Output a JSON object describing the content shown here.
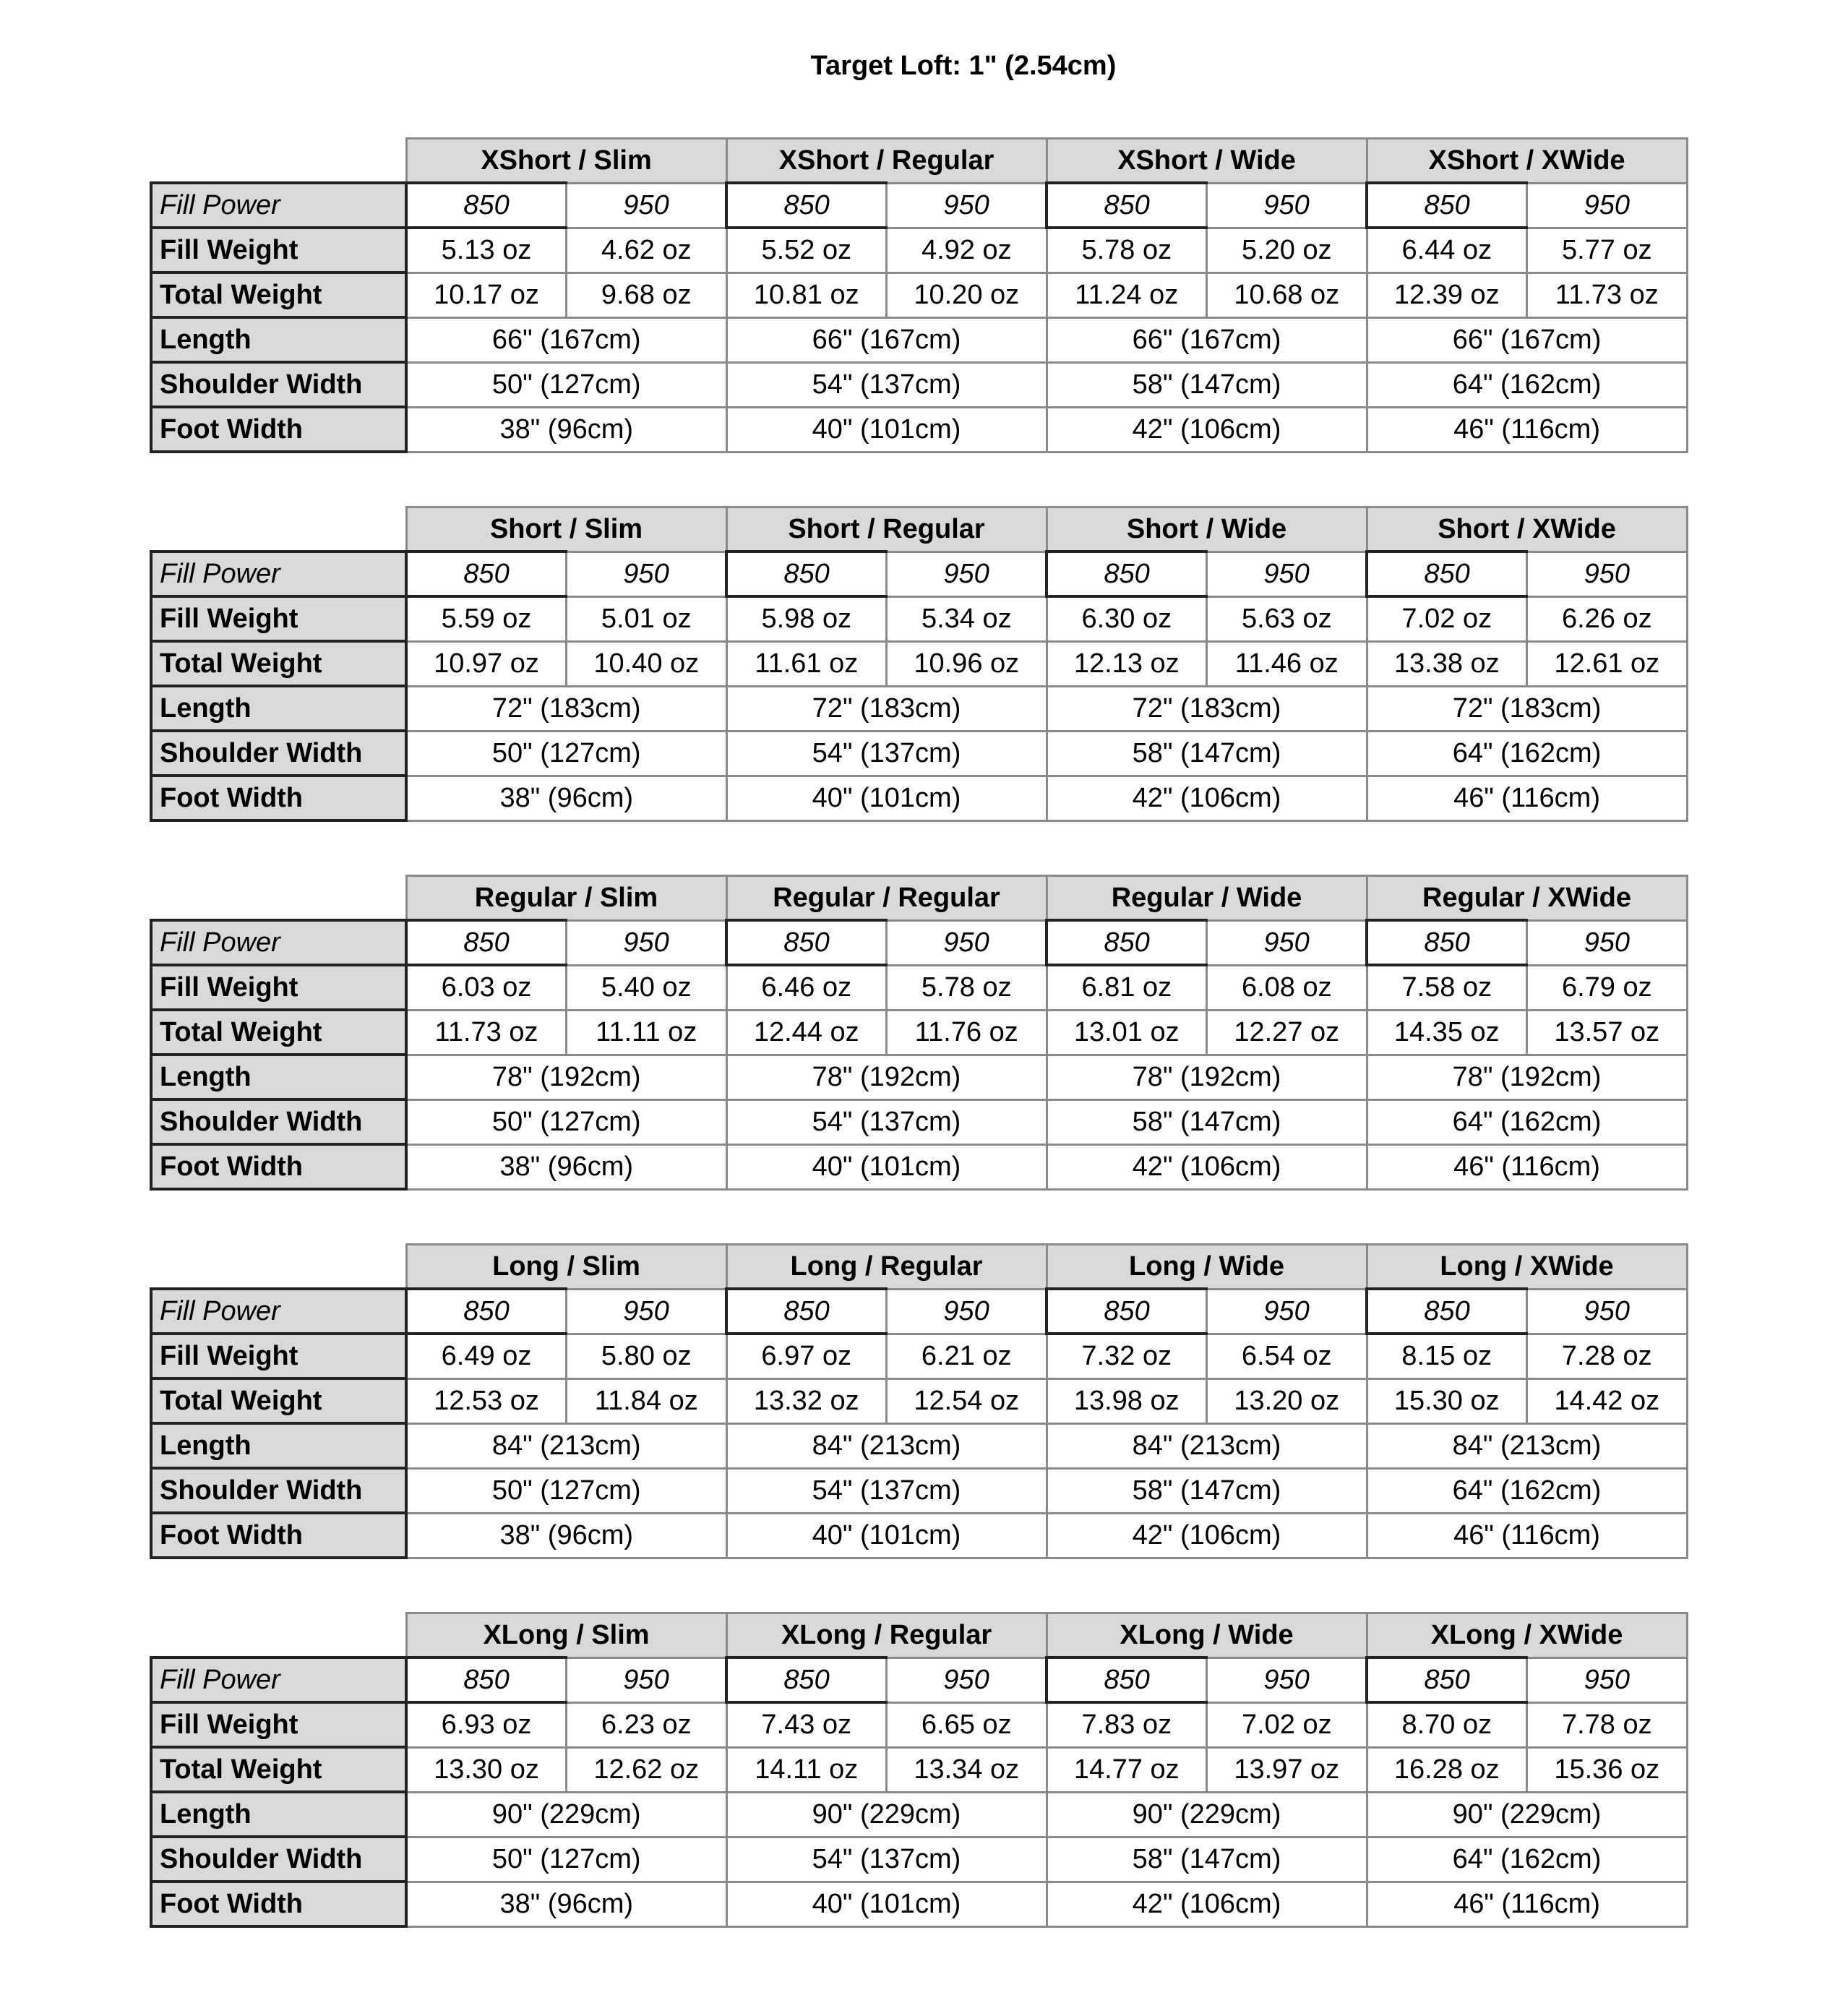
{
  "title": "Target Loft: 1\" (2.54cm)",
  "row_labels": {
    "fill_power": "Fill Power",
    "fill_weight": "Fill Weight",
    "total_weight": "Total Weight",
    "length": "Length",
    "shoulder_width": "Shoulder Width",
    "foot_width": "Foot Width"
  },
  "fill_powers": [
    "850",
    "950"
  ],
  "tables": [
    {
      "groups": [
        {
          "name": "XShort / Slim",
          "fill_weight": [
            "5.13 oz",
            "4.62 oz"
          ],
          "total_weight": [
            "10.17 oz",
            "9.68 oz"
          ],
          "length": "66\" (167cm)",
          "shoulder_width": "50\" (127cm)",
          "foot_width": "38\" (96cm)"
        },
        {
          "name": "XShort / Regular",
          "fill_weight": [
            "5.52 oz",
            "4.92 oz"
          ],
          "total_weight": [
            "10.81 oz",
            "10.20 oz"
          ],
          "length": "66\" (167cm)",
          "shoulder_width": "54\" (137cm)",
          "foot_width": "40\" (101cm)"
        },
        {
          "name": "XShort / Wide",
          "fill_weight": [
            "5.78 oz",
            "5.20 oz"
          ],
          "total_weight": [
            "11.24 oz",
            "10.68 oz"
          ],
          "length": "66\" (167cm)",
          "shoulder_width": "58\" (147cm)",
          "foot_width": "42\" (106cm)"
        },
        {
          "name": "XShort / XWide",
          "fill_weight": [
            "6.44 oz",
            "5.77 oz"
          ],
          "total_weight": [
            "12.39 oz",
            "11.73 oz"
          ],
          "length": "66\" (167cm)",
          "shoulder_width": "64\" (162cm)",
          "foot_width": "46\" (116cm)"
        }
      ]
    },
    {
      "groups": [
        {
          "name": "Short / Slim",
          "fill_weight": [
            "5.59 oz",
            "5.01 oz"
          ],
          "total_weight": [
            "10.97 oz",
            "10.40 oz"
          ],
          "length": "72\" (183cm)",
          "shoulder_width": "50\" (127cm)",
          "foot_width": "38\" (96cm)"
        },
        {
          "name": "Short / Regular",
          "fill_weight": [
            "5.98 oz",
            "5.34 oz"
          ],
          "total_weight": [
            "11.61 oz",
            "10.96 oz"
          ],
          "length": "72\" (183cm)",
          "shoulder_width": "54\" (137cm)",
          "foot_width": "40\" (101cm)"
        },
        {
          "name": "Short / Wide",
          "fill_weight": [
            "6.30 oz",
            "5.63 oz"
          ],
          "total_weight": [
            "12.13 oz",
            "11.46 oz"
          ],
          "length": "72\" (183cm)",
          "shoulder_width": "58\" (147cm)",
          "foot_width": "42\" (106cm)"
        },
        {
          "name": "Short / XWide",
          "fill_weight": [
            "7.02 oz",
            "6.26 oz"
          ],
          "total_weight": [
            "13.38 oz",
            "12.61 oz"
          ],
          "length": "72\" (183cm)",
          "shoulder_width": "64\" (162cm)",
          "foot_width": "46\" (116cm)"
        }
      ]
    },
    {
      "groups": [
        {
          "name": "Regular / Slim",
          "fill_weight": [
            "6.03 oz",
            "5.40 oz"
          ],
          "total_weight": [
            "11.73 oz",
            "11.11 oz"
          ],
          "length": "78\" (192cm)",
          "shoulder_width": "50\" (127cm)",
          "foot_width": "38\" (96cm)"
        },
        {
          "name": "Regular / Regular",
          "fill_weight": [
            "6.46 oz",
            "5.78 oz"
          ],
          "total_weight": [
            "12.44 oz",
            "11.76 oz"
          ],
          "length": "78\" (192cm)",
          "shoulder_width": "54\" (137cm)",
          "foot_width": "40\" (101cm)"
        },
        {
          "name": "Regular / Wide",
          "fill_weight": [
            "6.81 oz",
            "6.08 oz"
          ],
          "total_weight": [
            "13.01 oz",
            "12.27 oz"
          ],
          "length": "78\" (192cm)",
          "shoulder_width": "58\" (147cm)",
          "foot_width": "42\" (106cm)"
        },
        {
          "name": "Regular / XWide",
          "fill_weight": [
            "7.58 oz",
            "6.79 oz"
          ],
          "total_weight": [
            "14.35 oz",
            "13.57 oz"
          ],
          "length": "78\" (192cm)",
          "shoulder_width": "64\" (162cm)",
          "foot_width": "46\" (116cm)"
        }
      ]
    },
    {
      "groups": [
        {
          "name": "Long / Slim",
          "fill_weight": [
            "6.49 oz",
            "5.80 oz"
          ],
          "total_weight": [
            "12.53 oz",
            "11.84 oz"
          ],
          "length": "84\" (213cm)",
          "shoulder_width": "50\" (127cm)",
          "foot_width": "38\" (96cm)"
        },
        {
          "name": "Long / Regular",
          "fill_weight": [
            "6.97 oz",
            "6.21 oz"
          ],
          "total_weight": [
            "13.32 oz",
            "12.54 oz"
          ],
          "length": "84\" (213cm)",
          "shoulder_width": "54\" (137cm)",
          "foot_width": "40\" (101cm)"
        },
        {
          "name": "Long / Wide",
          "fill_weight": [
            "7.32 oz",
            "6.54 oz"
          ],
          "total_weight": [
            "13.98 oz",
            "13.20 oz"
          ],
          "length": "84\" (213cm)",
          "shoulder_width": "58\" (147cm)",
          "foot_width": "42\" (106cm)"
        },
        {
          "name": "Long / XWide",
          "fill_weight": [
            "8.15 oz",
            "7.28 oz"
          ],
          "total_weight": [
            "15.30 oz",
            "14.42 oz"
          ],
          "length": "84\" (213cm)",
          "shoulder_width": "64\" (162cm)",
          "foot_width": "46\" (116cm)"
        }
      ]
    },
    {
      "groups": [
        {
          "name": "XLong / Slim",
          "fill_weight": [
            "6.93 oz",
            "6.23 oz"
          ],
          "total_weight": [
            "13.30 oz",
            "12.62 oz"
          ],
          "length": "90\" (229cm)",
          "shoulder_width": "50\" (127cm)",
          "foot_width": "38\" (96cm)"
        },
        {
          "name": "XLong / Regular",
          "fill_weight": [
            "7.43 oz",
            "6.65 oz"
          ],
          "total_weight": [
            "14.11 oz",
            "13.34 oz"
          ],
          "length": "90\" (229cm)",
          "shoulder_width": "54\" (137cm)",
          "foot_width": "40\" (101cm)"
        },
        {
          "name": "XLong / Wide",
          "fill_weight": [
            "7.83 oz",
            "7.02 oz"
          ],
          "total_weight": [
            "14.77 oz",
            "13.97 oz"
          ],
          "length": "90\" (229cm)",
          "shoulder_width": "58\" (147cm)",
          "foot_width": "42\" (106cm)"
        },
        {
          "name": "XLong / XWide",
          "fill_weight": [
            "8.70 oz",
            "7.78 oz"
          ],
          "total_weight": [
            "16.28 oz",
            "15.36 oz"
          ],
          "length": "90\" (229cm)",
          "shoulder_width": "64\" (162cm)",
          "foot_width": "46\" (116cm)"
        }
      ]
    }
  ]
}
